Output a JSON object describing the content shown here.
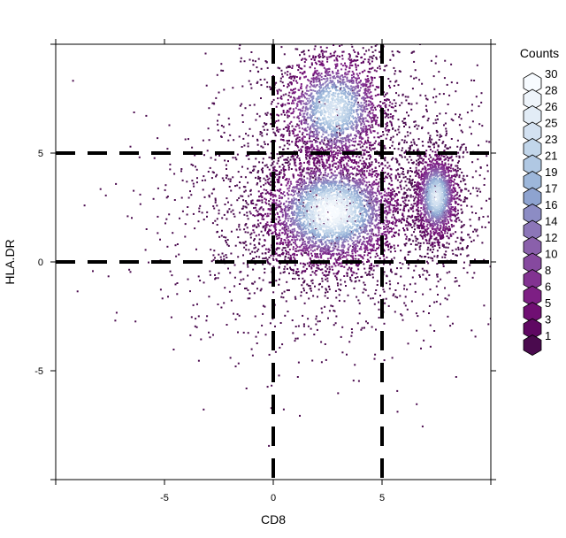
{
  "chart_data": {
    "type": "scatter",
    "subtype": "hexbin density",
    "xlabel": "CD8",
    "ylabel": "HLA.DR",
    "xlim": [
      -10,
      10
    ],
    "ylim": [
      -10,
      10
    ],
    "x_ticks": [
      -5,
      0,
      5
    ],
    "y_ticks": [
      -5,
      0,
      5
    ],
    "grid": false,
    "gates": {
      "vertical": [
        0,
        5
      ],
      "horizontal": [
        0,
        5
      ],
      "style": "dashed",
      "color": "#000000"
    },
    "density_clusters": [
      {
        "name": "",
        "center": [
          2.7,
          2.3
        ],
        "spread": [
          1.6,
          1.3
        ],
        "peak": 30
      },
      {
        "name": "",
        "center": [
          2.8,
          7.0
        ],
        "spread": [
          1.2,
          1.3
        ],
        "peak": 25
      },
      {
        "name": "",
        "center": [
          7.5,
          3.0
        ],
        "spread": [
          0.5,
          1.0
        ],
        "peak": 26
      }
    ],
    "legend": {
      "title": "Counts",
      "position": "right",
      "levels": [
        30,
        28,
        26,
        25,
        23,
        21,
        19,
        17,
        16,
        14,
        12,
        10,
        8,
        6,
        5,
        3,
        1
      ],
      "colors": [
        "#f7fbff",
        "#eef4fa",
        "#e2ecf6",
        "#d3e1f1",
        "#c2d6ea",
        "#b0c8e3",
        "#9db7da",
        "#8ea3d0",
        "#8c8cc4",
        "#8c76b8",
        "#8a60ab",
        "#86499f",
        "#823391",
        "#7d1f84",
        "#700f73",
        "#5f0862",
        "#4a0a4e"
      ]
    }
  }
}
